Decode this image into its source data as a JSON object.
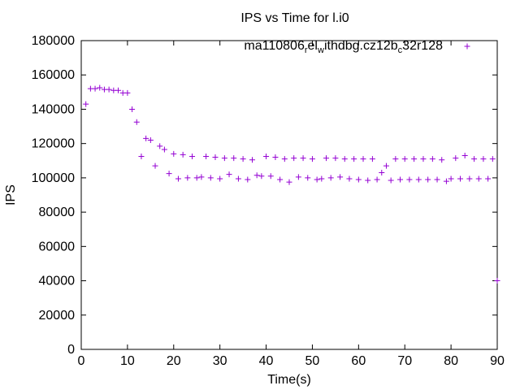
{
  "chart_data": {
    "type": "scatter",
    "title": "IPS vs Time for l.i0",
    "xlabel": "Time(s)",
    "ylabel": "IPS",
    "xlim": [
      0,
      90
    ],
    "ylim": [
      0,
      180000
    ],
    "xticks": [
      0,
      10,
      20,
      30,
      40,
      50,
      60,
      70,
      80,
      90
    ],
    "yticks": [
      0,
      20000,
      40000,
      60000,
      80000,
      100000,
      120000,
      140000,
      160000,
      180000
    ],
    "marker_color": "#9400d3",
    "legend": {
      "position": "top-right",
      "parts": [
        {
          "text": "ma110806",
          "sub": false
        },
        {
          "text": "r",
          "sub": true
        },
        {
          "text": "el",
          "sub": false
        },
        {
          "text": "w",
          "sub": true
        },
        {
          "text": "ithdbg.cz12b",
          "sub": false
        },
        {
          "text": "c",
          "sub": true
        },
        {
          "text": "32r128",
          "sub": false
        }
      ]
    },
    "series": [
      {
        "name": "ma110806_rel_withdbg.cz12b_c32r128",
        "x": [
          1,
          2,
          3,
          4,
          5,
          6,
          7,
          8,
          9,
          10,
          11,
          12,
          13,
          14,
          15,
          16,
          17,
          18,
          19,
          20,
          21,
          22,
          23,
          24,
          25,
          26,
          27,
          28,
          29,
          30,
          31,
          32,
          33,
          34,
          35,
          36,
          37,
          38,
          39,
          40,
          41,
          42,
          43,
          44,
          45,
          46,
          47,
          48,
          49,
          50,
          51,
          52,
          53,
          54,
          55,
          56,
          57,
          58,
          59,
          60,
          61,
          62,
          63,
          64,
          65,
          66,
          67,
          68,
          69,
          70,
          71,
          72,
          73,
          74,
          75,
          76,
          77,
          78,
          79,
          80,
          81,
          82,
          83,
          84,
          85,
          86,
          87,
          88,
          89,
          90
        ],
        "y": [
          143000,
          152000,
          152000,
          152500,
          151500,
          151500,
          151000,
          151000,
          149500,
          149500,
          140000,
          132500,
          112500,
          123000,
          122000,
          107000,
          118500,
          116500,
          102500,
          114000,
          99500,
          113500,
          100000,
          112500,
          100000,
          100500,
          112500,
          100000,
          112000,
          99500,
          111500,
          102000,
          111500,
          99500,
          111000,
          99000,
          110500,
          101500,
          101000,
          112500,
          101000,
          112000,
          99000,
          111000,
          97500,
          111500,
          100500,
          111500,
          100000,
          111000,
          99000,
          99500,
          111500,
          100000,
          111500,
          100500,
          111000,
          99500,
          111000,
          99000,
          111000,
          98500,
          111000,
          99000,
          103000,
          107000,
          98500,
          111000,
          99000,
          111000,
          99000,
          111000,
          99000,
          111000,
          99000,
          111000,
          99000,
          110500,
          98000,
          99500,
          111500,
          99500,
          113000,
          99500,
          111000,
          99500,
          111000,
          99500,
          111000,
          40000
        ]
      }
    ]
  }
}
